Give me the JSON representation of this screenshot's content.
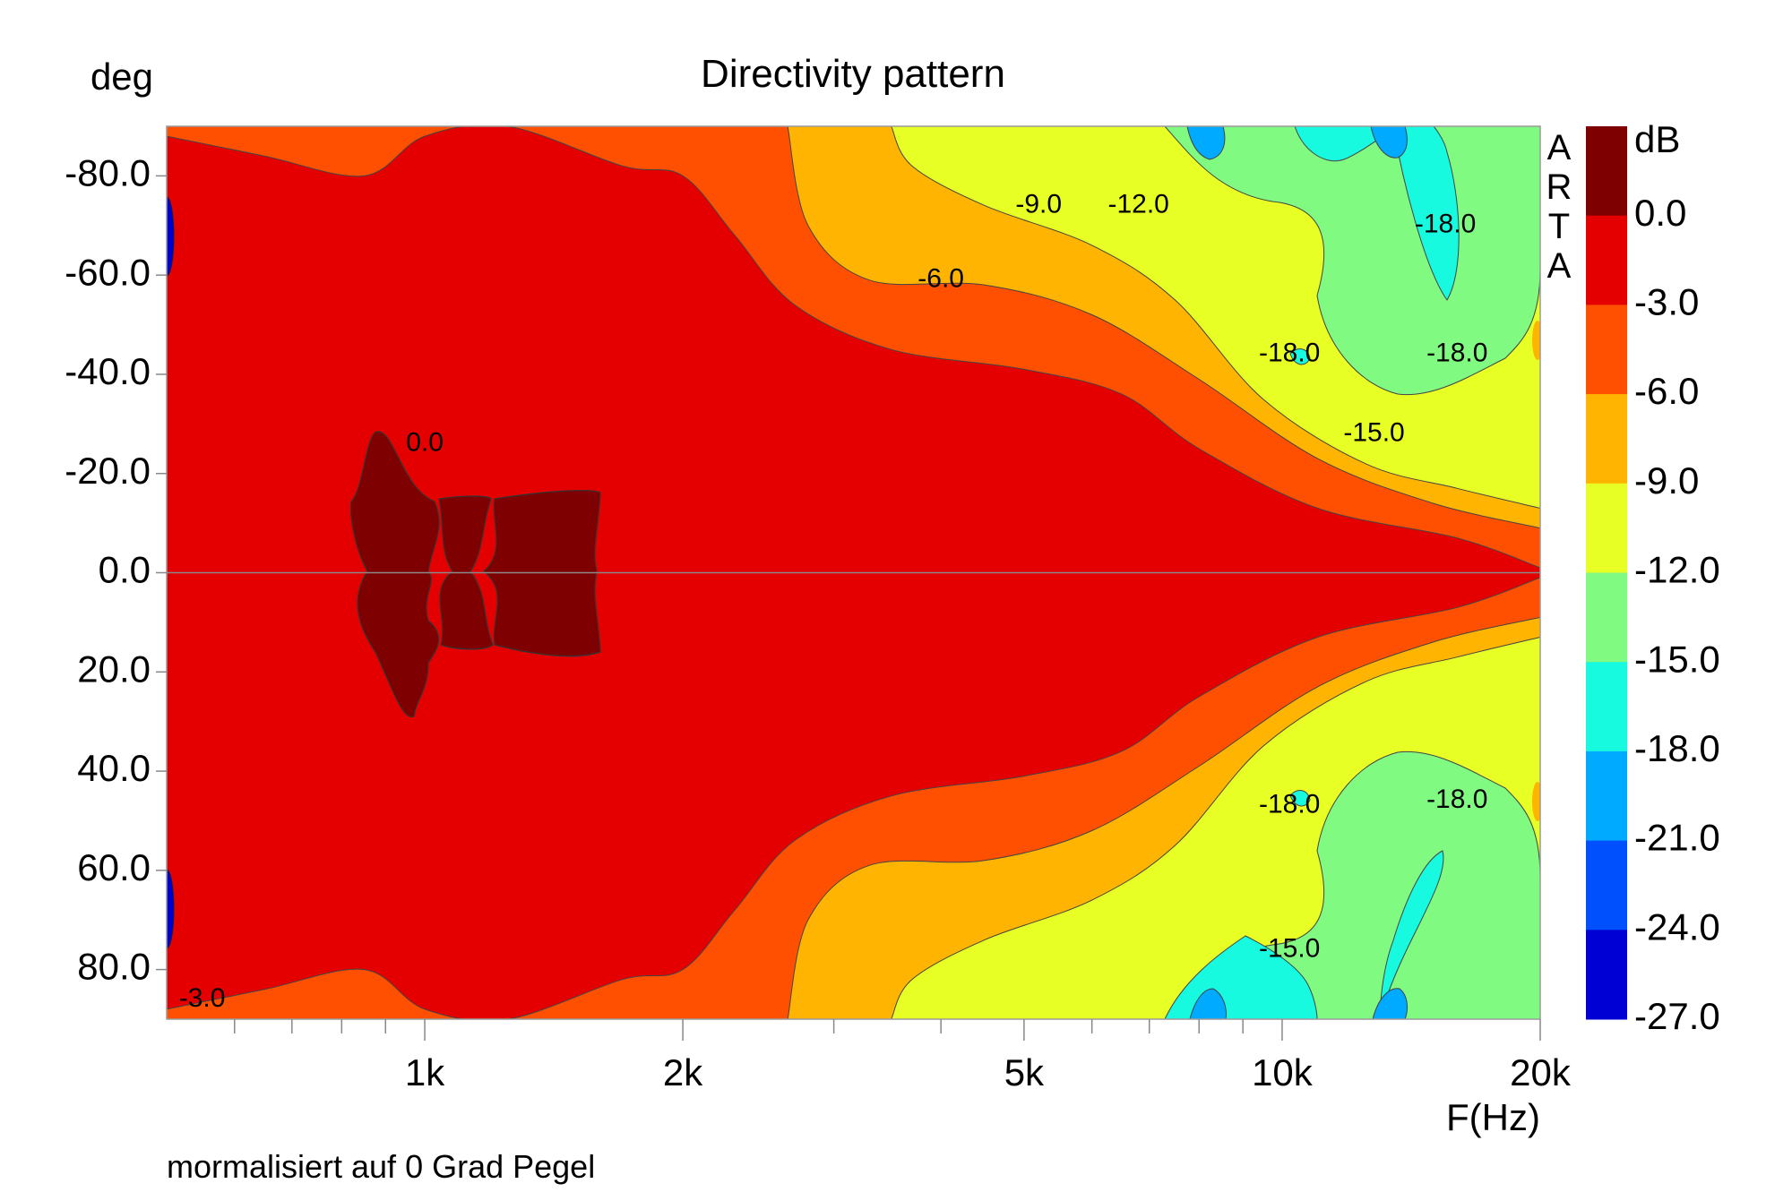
{
  "chart_data": {
    "type": "heatmap",
    "title": "Directivity pattern",
    "xlabel": "F(Hz)",
    "ylabel": "deg",
    "x_scale": "log",
    "xlim": [
      500,
      20000
    ],
    "ylim": [
      -90,
      90
    ],
    "x_ticks": [
      {
        "value": 1000,
        "label": "1k"
      },
      {
        "value": 2000,
        "label": "2k"
      },
      {
        "value": 5000,
        "label": "5k"
      },
      {
        "value": 10000,
        "label": "10k"
      },
      {
        "value": 20000,
        "label": "20k"
      }
    ],
    "x_minor_ticks": [
      600,
      700,
      800,
      900,
      3000,
      4000,
      6000,
      7000,
      8000,
      9000
    ],
    "y_ticks": [
      {
        "value": -80,
        "label": "-80.0"
      },
      {
        "value": -60,
        "label": "-60.0"
      },
      {
        "value": -40,
        "label": "-40.0"
      },
      {
        "value": -20,
        "label": "-20.0"
      },
      {
        "value": 0,
        "label": "0.0"
      },
      {
        "value": 20,
        "label": "20.0"
      },
      {
        "value": 40,
        "label": "40.0"
      },
      {
        "value": 60,
        "label": "60.0"
      },
      {
        "value": 80,
        "label": "80.0"
      }
    ],
    "colorbar": {
      "unit": "dB",
      "levels": [
        {
          "label": "0.0",
          "color": "#7e0000"
        },
        {
          "label": "-3.0",
          "color": "#e40000"
        },
        {
          "label": "-6.0",
          "color": "#fe5000"
        },
        {
          "label": "-9.0",
          "color": "#feb400"
        },
        {
          "label": "-12.0",
          "color": "#e7ff24"
        },
        {
          "label": "-15.0",
          "color": "#80fa80"
        },
        {
          "label": "-18.0",
          "color": "#17fae0"
        },
        {
          "label": "-21.0",
          "color": "#00aaff"
        },
        {
          "label": "-24.0",
          "color": "#0050fe"
        },
        {
          "label": "-27.0",
          "color": "#0000d4"
        }
      ]
    },
    "contours": [
      {
        "level": -3,
        "band_edges": [
          {
            "x": 500,
            "deg": 88
          },
          {
            "x": 650,
            "deg": 84
          },
          {
            "x": 850,
            "deg": 80
          },
          {
            "x": 1000,
            "deg": 88
          },
          {
            "x": 1250,
            "deg": 90
          },
          {
            "x": 1700,
            "deg": 82
          },
          {
            "x": 2000,
            "deg": 80
          },
          {
            "x": 2300,
            "deg": 68
          },
          {
            "x": 2700,
            "deg": 54
          },
          {
            "x": 3500,
            "deg": 45
          },
          {
            "x": 5000,
            "deg": 41
          },
          {
            "x": 6500,
            "deg": 36
          },
          {
            "x": 8000,
            "deg": 25
          },
          {
            "x": 11000,
            "deg": 13
          },
          {
            "x": 16000,
            "deg": 7
          },
          {
            "x": 20000,
            "deg": 1
          }
        ]
      },
      {
        "level": -6,
        "band_edges": [
          {
            "x": 2650,
            "deg": 90
          },
          {
            "x": 2800,
            "deg": 70
          },
          {
            "x": 3300,
            "deg": 59
          },
          {
            "x": 4500,
            "deg": 58
          },
          {
            "x": 6000,
            "deg": 52
          },
          {
            "x": 8000,
            "deg": 39
          },
          {
            "x": 11000,
            "deg": 23
          },
          {
            "x": 15000,
            "deg": 14
          },
          {
            "x": 20000,
            "deg": 9
          }
        ]
      },
      {
        "level": -9,
        "band_edges": [
          {
            "x": 3500,
            "deg": 90
          },
          {
            "x": 3700,
            "deg": 82
          },
          {
            "x": 4500,
            "deg": 74
          },
          {
            "x": 6000,
            "deg": 66
          },
          {
            "x": 7500,
            "deg": 55
          },
          {
            "x": 9500,
            "deg": 35
          },
          {
            "x": 12500,
            "deg": 22
          },
          {
            "x": 16000,
            "deg": 17
          },
          {
            "x": 20000,
            "deg": 13
          }
        ]
      }
    ],
    "labels": [
      {
        "text": "0.0",
        "x": 1000,
        "deg": -26
      },
      {
        "text": "-3.0",
        "x": 550,
        "deg": 86
      },
      {
        "text": "-6.0",
        "x": 4000,
        "deg": -59
      },
      {
        "text": "-9.0",
        "x": 5200,
        "deg": -74
      },
      {
        "text": "-12.0",
        "x": 6800,
        "deg": -74
      },
      {
        "text": "-18.0",
        "x": 15500,
        "deg": -70
      },
      {
        "text": "-18.0",
        "x": 10200,
        "deg": -44
      },
      {
        "text": "-18.0",
        "x": 16000,
        "deg": -44
      },
      {
        "text": "-15.0",
        "x": 12800,
        "deg": -28
      },
      {
        "text": "-18.0",
        "x": 10200,
        "deg": 47
      },
      {
        "text": "-18.0",
        "x": 16000,
        "deg": 46
      },
      {
        "text": "-15.0",
        "x": 10200,
        "deg": 76
      }
    ],
    "watermark": [
      "A",
      "R",
      "T",
      "A"
    ]
  },
  "footnote": "mormalisiert auf 0 Grad Pegel"
}
